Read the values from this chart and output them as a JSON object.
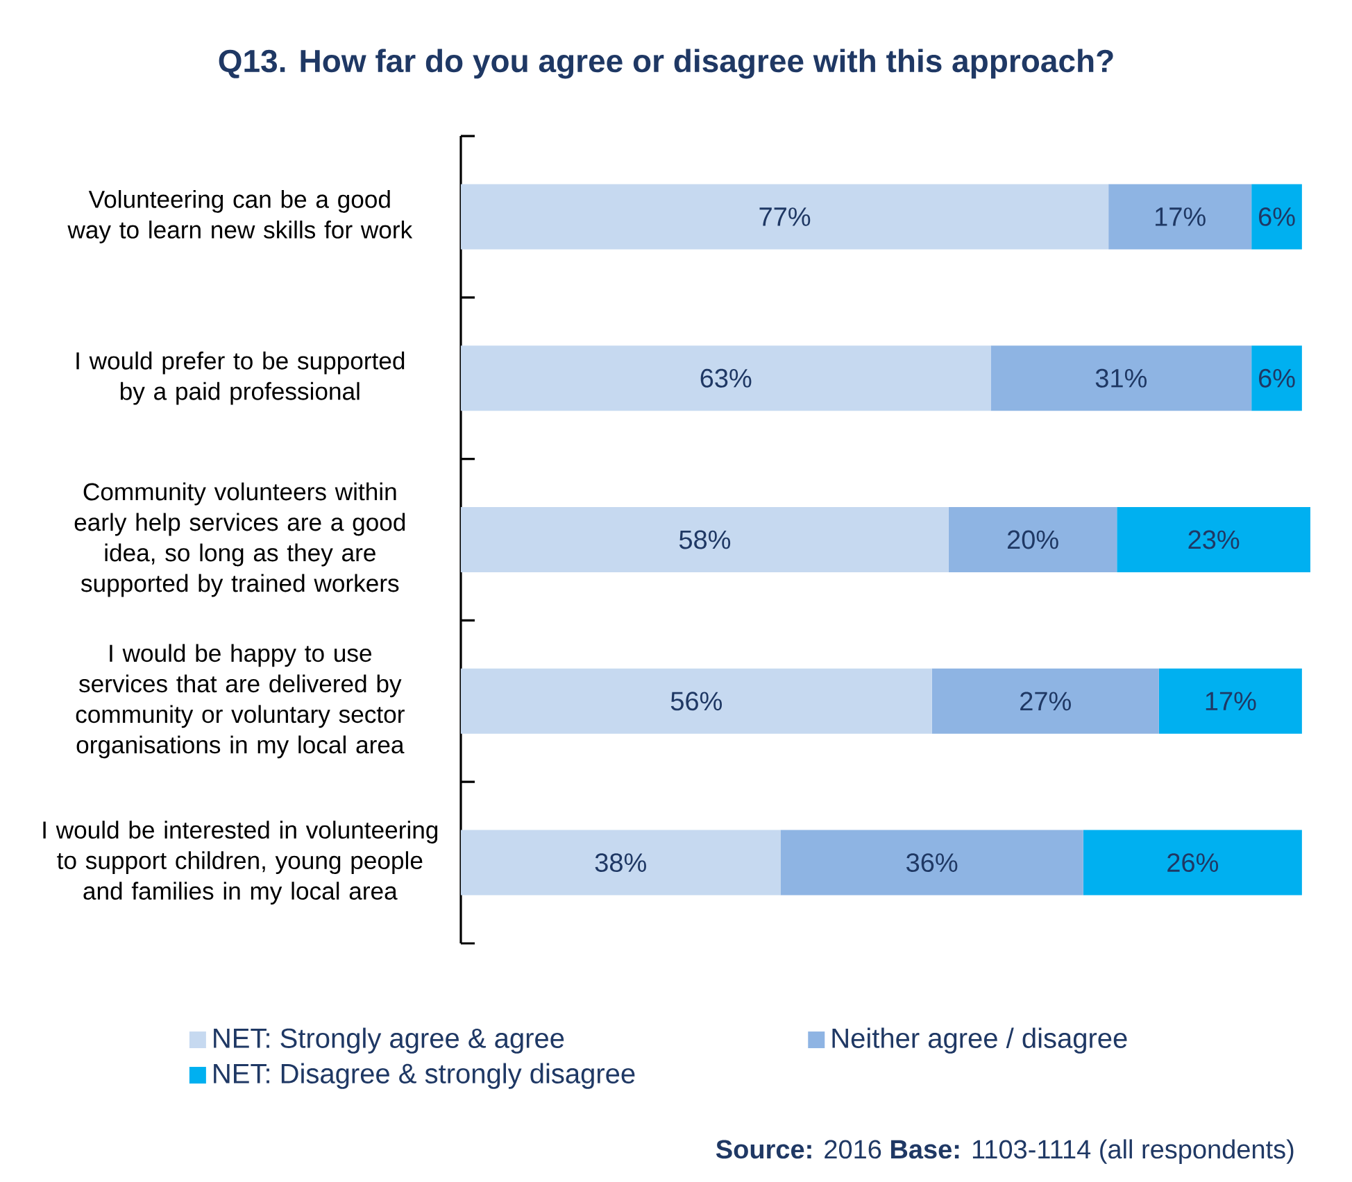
{
  "chart_data": {
    "type": "bar",
    "orientation": "horizontal",
    "stacked": true,
    "title": "Q13.  How far do you agree or disagree with this approach?",
    "categories": [
      "Volunteering can be a good way to learn new skills for work",
      "I would prefer to be supported by a paid professional",
      "Community volunteers within early help services are a good idea, so long as they are supported by trained workers",
      "I would be happy to use services that are delivered by community or voluntary sector organisations in my local area",
      "I would be interested in volunteering to support children, young people and families in my local area"
    ],
    "series": [
      {
        "name": "NET: Strongly agree & agree",
        "color": "#c6d9f0",
        "values": [
          77,
          63,
          58,
          56,
          38
        ],
        "value_labels": [
          "77%",
          "63%",
          "58%",
          "56%",
          "38%"
        ]
      },
      {
        "name": "Neither agree / disagree",
        "color": "#8eb4e3",
        "values": [
          17,
          31,
          20,
          27,
          36
        ],
        "value_labels": [
          "17%",
          "31%",
          "20%",
          "27%",
          "36%"
        ]
      },
      {
        "name": "NET: Disagree & strongly disagree",
        "color": "#00b0f0",
        "values": [
          6,
          6,
          23,
          17,
          26
        ],
        "value_labels": [
          "6%",
          "6%",
          "23%",
          "17%",
          "26%"
        ]
      }
    ],
    "legend": "bottom",
    "grid": false,
    "annotations": [
      "**Source:** 2016  **Base:** 1103-1114 (all respondents)"
    ]
  }
}
